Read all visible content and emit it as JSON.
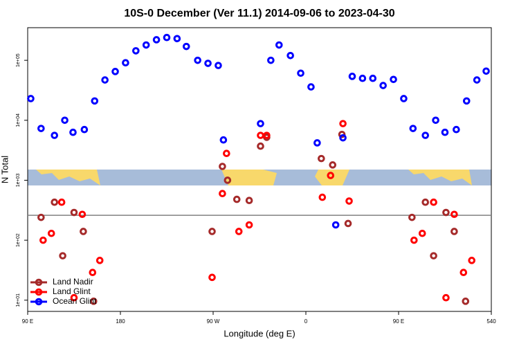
{
  "chart_data": {
    "type": "scatter",
    "title": "10S-0 December (Ver 11.1)   2014-09-06 to 2023-04-30",
    "x_label": "Longitude (deg E)",
    "y_label": "N Total",
    "log_y": true,
    "legend": "bottom-left",
    "hline": 260,
    "hline_color": "#808080",
    "xlim": [
      90,
      540
    ],
    "ylim": [
      6.5,
      350000
    ],
    "xticks": [
      {
        "value": 90,
        "label": "90 E"
      },
      180,
      {
        "value": 270,
        "label": "90 W"
      },
      {
        "value": 360,
        "label": "0"
      },
      {
        "value": 450,
        "label": "90 E"
      },
      540
    ],
    "yticks": [
      {
        "value": 10,
        "label": "1e+01"
      },
      {
        "value": 100,
        "label": "1e+02"
      },
      {
        "value": 1000,
        "label": "1e+03"
      },
      {
        "value": 10000,
        "label": "1e+04"
      },
      {
        "value": 100000,
        "label": "1e+05"
      }
    ],
    "series": [
      {
        "name": "Land Nadir",
        "color": "#a52a2a",
        "x": [
          103,
          116,
          124,
          135,
          144,
          154,
          269,
          279,
          284,
          293,
          305,
          316,
          322,
          375,
          386,
          395,
          401,
          463,
          476,
          484,
          496,
          504,
          515
        ],
        "values": [
          240,
          430,
          55,
          290,
          140,
          9.6,
          140,
          1700,
          1000,
          480,
          460,
          3700,
          5200,
          2300,
          1800,
          5800,
          190,
          240,
          430,
          55,
          290,
          140,
          9.6
        ]
      },
      {
        "name": "Land Glint",
        "color": "#ff0000",
        "x": [
          105,
          113,
          123,
          135,
          143,
          153,
          160,
          269,
          279,
          283,
          295,
          305,
          316,
          322,
          376,
          384,
          396,
          402,
          465,
          473,
          484,
          496,
          504,
          513,
          521
        ],
        "values": [
          100,
          130,
          430,
          11,
          270,
          29,
          46,
          24,
          600,
          2800,
          140,
          180,
          5600,
          5600,
          520,
          1200,
          8800,
          450,
          100,
          130,
          430,
          11,
          270,
          29,
          46
        ]
      },
      {
        "name": "Ocean Glint",
        "color": "#0000ff",
        "x": [
          93,
          103,
          116,
          126,
          134,
          145,
          155,
          165,
          175,
          185,
          195,
          205,
          215,
          225,
          235,
          244,
          255,
          265,
          275,
          280,
          316,
          326,
          334,
          345,
          355,
          365,
          371,
          389,
          396,
          405,
          415,
          425,
          435,
          445,
          455,
          464,
          476,
          486,
          495,
          506,
          516,
          526,
          535
        ],
        "values": [
          23000,
          7300,
          5600,
          10000,
          6300,
          7000,
          21000,
          47000,
          65000,
          91000,
          144000,
          180000,
          220000,
          240000,
          230000,
          170000,
          100000,
          89000,
          82000,
          4700,
          8800,
          100000,
          180000,
          120000,
          61000,
          36000,
          4200,
          180,
          5100,
          54000,
          50000,
          50000,
          38000,
          48000,
          23000,
          7300,
          5600,
          10000,
          6300,
          7000,
          21000,
          47000,
          66000
        ]
      }
    ]
  }
}
